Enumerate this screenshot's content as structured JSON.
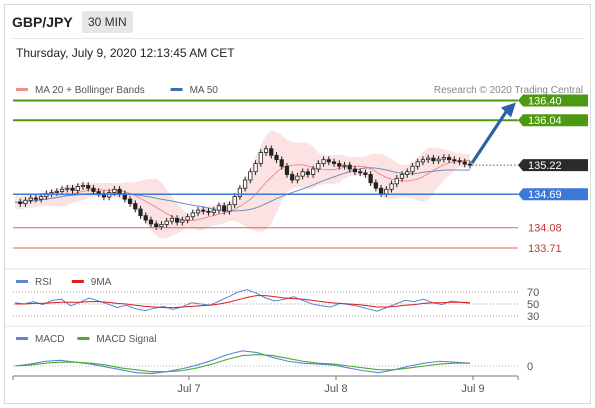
{
  "header": {
    "symbol": "GBP/JPY",
    "timeframe": "30 MIN",
    "datetime": "Thursday, July 9, 2020 12:13:45 AM CET"
  },
  "legend": {
    "main": [
      {
        "label": "MA 20 + Bollinger Bands",
        "color": "#f08c8c"
      },
      {
        "label": "MA 50",
        "color": "#3d6ea8"
      }
    ],
    "rsi": [
      {
        "label": "RSI",
        "color": "#5b86d6"
      },
      {
        "label": "9MA",
        "color": "#d91f1f"
      }
    ],
    "macd": [
      {
        "label": "MACD",
        "color": "#5b86d6"
      },
      {
        "label": "MACD Signal",
        "color": "#4ea832"
      }
    ]
  },
  "credit": "Research © 2020 Trading Central",
  "colors": {
    "green": "#4c9a12",
    "blue": "#3c78d8",
    "red": "#e06060",
    "dark": "#2b2b2b",
    "arrow": "#2d62a3"
  },
  "chart_data": {
    "type": "candlestick",
    "instrument": "GBP/JPY",
    "interval": "30 MIN",
    "x_ticks": [
      "Jul 7",
      "Jul 8",
      "Jul 9"
    ],
    "price_ylim": [
      133.4,
      136.7
    ],
    "levels": [
      {
        "value": 136.4,
        "label": "136.40",
        "kind": "resistance",
        "color": "#4c9a12"
      },
      {
        "value": 136.04,
        "label": "136.04",
        "kind": "resistance",
        "color": "#4c9a12"
      },
      {
        "value": 135.22,
        "label": "135.22",
        "kind": "last-price",
        "color": "#2b2b2b"
      },
      {
        "value": 134.69,
        "label": "134.69",
        "kind": "pivot",
        "color": "#3c78d8"
      },
      {
        "value": 134.08,
        "label": "134.08",
        "kind": "support",
        "color": "#e06060"
      },
      {
        "value": 133.71,
        "label": "133.71",
        "kind": "support",
        "color": "#e06060"
      }
    ],
    "close_series": [
      134.55,
      134.52,
      134.58,
      134.62,
      134.6,
      134.65,
      134.7,
      134.72,
      134.74,
      134.78,
      134.8,
      134.76,
      134.83,
      134.85,
      134.8,
      134.74,
      134.7,
      134.64,
      134.72,
      134.78,
      134.7,
      134.6,
      134.52,
      134.42,
      134.3,
      134.22,
      134.15,
      134.1,
      134.14,
      134.2,
      134.25,
      134.18,
      134.22,
      134.28,
      134.35,
      134.4,
      134.38,
      134.36,
      134.4,
      134.48,
      134.38,
      134.5,
      134.65,
      134.8,
      134.95,
      135.1,
      135.25,
      135.45,
      135.52,
      135.4,
      135.32,
      135.2,
      135.05,
      134.95,
      135.02,
      135.1,
      135.05,
      135.15,
      135.25,
      135.32,
      135.28,
      135.25,
      135.2,
      135.22,
      135.15,
      135.1,
      135.08,
      135.05,
      134.9,
      134.8,
      134.7,
      134.78,
      134.88,
      134.98,
      135.05,
      135.1,
      135.2,
      135.28,
      135.32,
      135.35,
      135.3,
      135.33,
      135.36,
      135.32,
      135.3,
      135.28,
      135.24,
      135.22
    ],
    "rsi": {
      "levels": [
        70,
        50,
        30
      ],
      "series": [
        {
          "name": "RSI",
          "values": [
            52,
            50,
            54,
            49,
            56,
            58,
            47,
            53,
            60,
            55,
            50,
            44,
            48,
            42,
            39,
            43,
            46,
            41,
            45,
            52,
            50,
            48,
            55,
            62,
            70,
            74,
            68,
            60,
            55,
            58,
            62,
            56,
            50,
            47,
            45,
            51,
            49,
            46,
            42,
            38,
            44,
            50,
            56,
            54,
            58,
            52,
            49,
            55,
            53,
            51
          ]
        },
        {
          "name": "9MA",
          "values": [
            50,
            50,
            51,
            51,
            52,
            53,
            53,
            53,
            54,
            54,
            53,
            51,
            50,
            48,
            46,
            45,
            44,
            44,
            45,
            46,
            47,
            48,
            50,
            53,
            57,
            61,
            64,
            64,
            62,
            60,
            59,
            58,
            56,
            54,
            52,
            51,
            50,
            49,
            47,
            45,
            45,
            46,
            48,
            49,
            51,
            52,
            52,
            53,
            53,
            52
          ]
        }
      ]
    },
    "macd": {
      "levels": [
        0
      ],
      "series": [
        {
          "name": "MACD",
          "values": [
            0,
            0.02,
            0.05,
            0.06,
            0.04,
            0.02,
            -0.01,
            -0.04,
            -0.07,
            -0.08,
            -0.06,
            -0.03,
            0.01,
            0.06,
            0.12,
            0.16,
            0.14,
            0.09,
            0.05,
            0.03,
            0.02,
            0.01,
            -0.02,
            -0.05,
            -0.07,
            -0.04,
            0,
            0.03,
            0.05,
            0.04,
            0.03
          ]
        },
        {
          "name": "MACD Signal",
          "values": [
            0,
            0.01,
            0.03,
            0.04,
            0.04,
            0.03,
            0.01,
            -0.02,
            -0.04,
            -0.06,
            -0.06,
            -0.05,
            -0.02,
            0.02,
            0.07,
            0.11,
            0.12,
            0.11,
            0.08,
            0.05,
            0.03,
            0.02,
            0,
            -0.02,
            -0.04,
            -0.04,
            -0.02,
            0,
            0.02,
            0.03,
            0.03
          ]
        }
      ]
    }
  }
}
